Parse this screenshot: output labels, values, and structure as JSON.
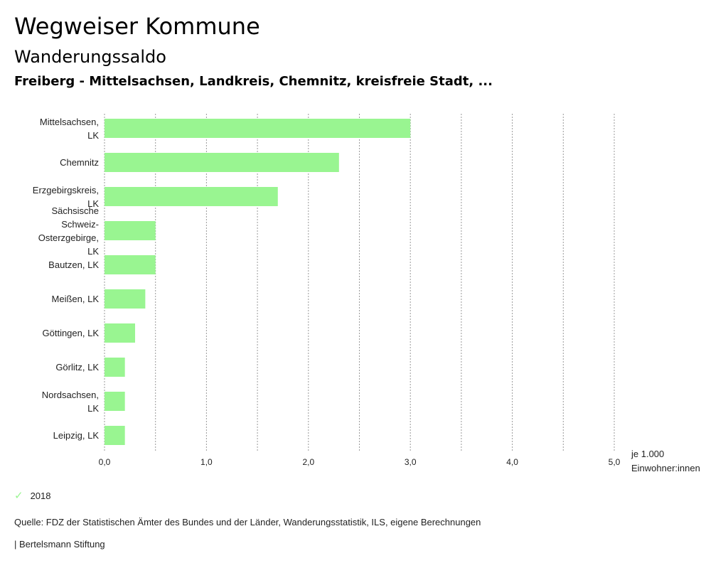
{
  "header": {
    "title": "Wegweiser Kommune",
    "subtitle": "Wanderungssaldo",
    "region": "Freiberg - Mittelsachsen, Landkreis, Chemnitz, kreisfreie Stadt, ..."
  },
  "colors": {
    "bar": "#99f591",
    "grid": "#9a9a9a",
    "axis_text": "#222222"
  },
  "chart_data": {
    "type": "bar",
    "orientation": "horizontal",
    "categories": [
      [
        "Mittelsachsen,",
        "LK"
      ],
      [
        "Chemnitz"
      ],
      [
        "Erzgebirgskreis,",
        "LK"
      ],
      [
        "Sächsische",
        "Schweiz-",
        "Osterzgebirge,",
        "LK"
      ],
      [
        "Bautzen, LK"
      ],
      [
        "Meißen, LK"
      ],
      [
        "Göttingen, LK"
      ],
      [
        "Görlitz, LK"
      ],
      [
        "Nordsachsen,",
        "LK"
      ],
      [
        "Leipzig, LK"
      ]
    ],
    "series": [
      {
        "name": "2018",
        "values": [
          3.0,
          2.3,
          1.7,
          0.5,
          0.5,
          0.4,
          0.3,
          0.2,
          0.2,
          0.2
        ]
      }
    ],
    "xlim": [
      0,
      5
    ],
    "xticks": [
      0,
      1,
      2,
      3,
      4,
      5
    ],
    "xtick_labels": [
      "0,0",
      "1,0",
      "2,0",
      "3,0",
      "4,0",
      "5,0"
    ],
    "unit_label": [
      "je 1.000",
      "Einwohner:innen"
    ],
    "legend": [
      "2018"
    ],
    "grid": true
  },
  "legend_label": "2018",
  "source": "Quelle: FDZ der Statistischen Ämter des Bundes und der Länder, Wanderungsstatistik, ILS, eigene Berechnungen",
  "brand": "| Bertelsmann Stiftung"
}
